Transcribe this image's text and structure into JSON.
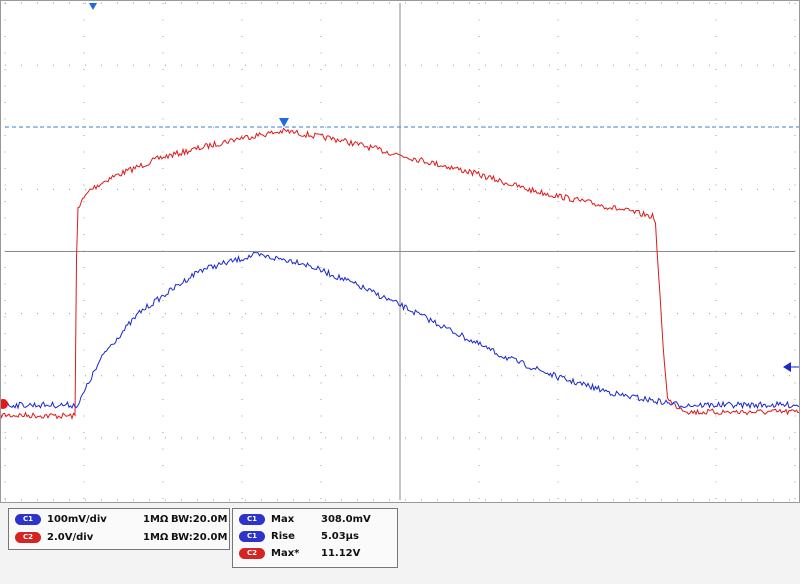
{
  "channels": [
    {
      "badge": "C1",
      "scale": "100mV/div",
      "impedance": "1MΩ",
      "bandwidth": "BW:20.0M"
    },
    {
      "badge": "C2",
      "scale": "2.0V/div",
      "impedance": "1MΩ",
      "bandwidth": "BW:20.0M"
    }
  ],
  "measurements": [
    {
      "badge": "C1",
      "name": "Max",
      "value": "308.0mV"
    },
    {
      "badge": "C1",
      "name": "Rise",
      "value": "5.03μs"
    },
    {
      "badge": "C2",
      "name": "Max*",
      "value": "11.12V"
    }
  ]
}
